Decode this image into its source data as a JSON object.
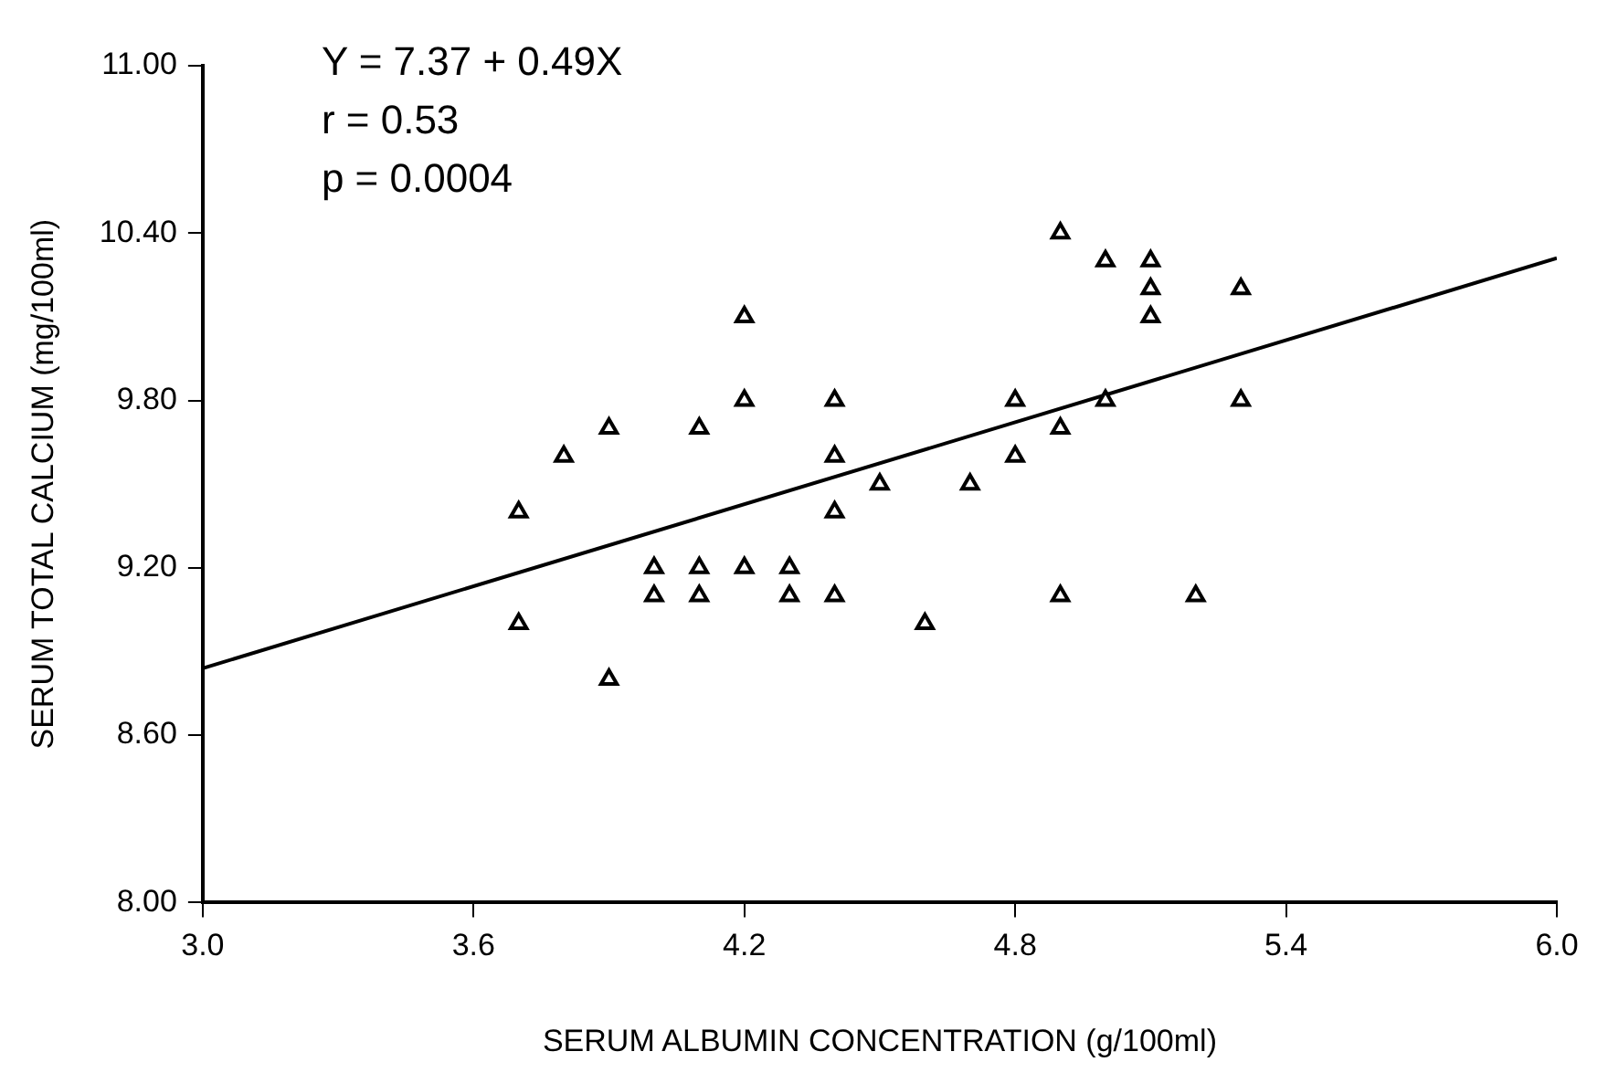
{
  "chart_data": {
    "type": "scatter",
    "xlabel": "SERUM ALBUMIN CONCENTRATION (g/100ml)",
    "ylabel": "SERUM TOTAL CALCIUM (mg/100ml)",
    "annotations": [
      "Y = 7.37 + 0.49X",
      "r = 0.53",
      "p = 0.0004"
    ],
    "xlim": [
      3.0,
      6.0
    ],
    "xticks": [
      {
        "value": 3.0,
        "label": "3.0"
      },
      3.6,
      4.2,
      4.8,
      5.4,
      {
        "value": 6.0,
        "label": "6.0"
      }
    ],
    "ylim": [
      8.0,
      11.0
    ],
    "yticks": [
      {
        "value": 8.0,
        "label": "8.00"
      },
      {
        "value": 8.6,
        "label": "8.60"
      },
      {
        "value": 9.2,
        "label": "9.20"
      },
      {
        "value": 9.8,
        "label": "9.80"
      },
      {
        "value": 10.4,
        "label": "10.40"
      },
      {
        "value": 11.0,
        "label": "11.00"
      }
    ],
    "grid": false,
    "legend": false,
    "marker": "triangle",
    "series": [
      {
        "color": "#000000",
        "x": [
          3.7,
          3.7,
          3.8,
          3.9,
          3.9,
          4.0,
          4.0,
          4.1,
          4.1,
          4.1,
          4.2,
          4.2,
          4.2,
          4.3,
          4.3,
          4.4,
          4.4,
          4.4,
          4.4,
          4.5,
          4.6,
          4.7,
          4.8,
          4.8,
          4.9,
          4.9,
          4.9,
          5.0,
          5.0,
          5.1,
          5.1,
          5.1,
          5.2,
          5.3,
          5.3
        ],
        "values": [
          9.4,
          9.0,
          9.6,
          9.7,
          8.8,
          9.2,
          9.1,
          9.7,
          9.2,
          9.1,
          10.1,
          9.8,
          9.2,
          9.2,
          9.1,
          9.8,
          9.6,
          9.4,
          9.1,
          9.5,
          9.0,
          9.5,
          9.8,
          9.6,
          10.4,
          9.7,
          9.1,
          10.3,
          9.8,
          10.3,
          10.2,
          10.1,
          9.1,
          10.2,
          9.8
        ]
      },
      {
        "type": "line",
        "color": "#000000",
        "x": [
          3.0,
          6.0
        ],
        "values": [
          8.84,
          10.31
        ],
        "marker": "none"
      }
    ]
  }
}
